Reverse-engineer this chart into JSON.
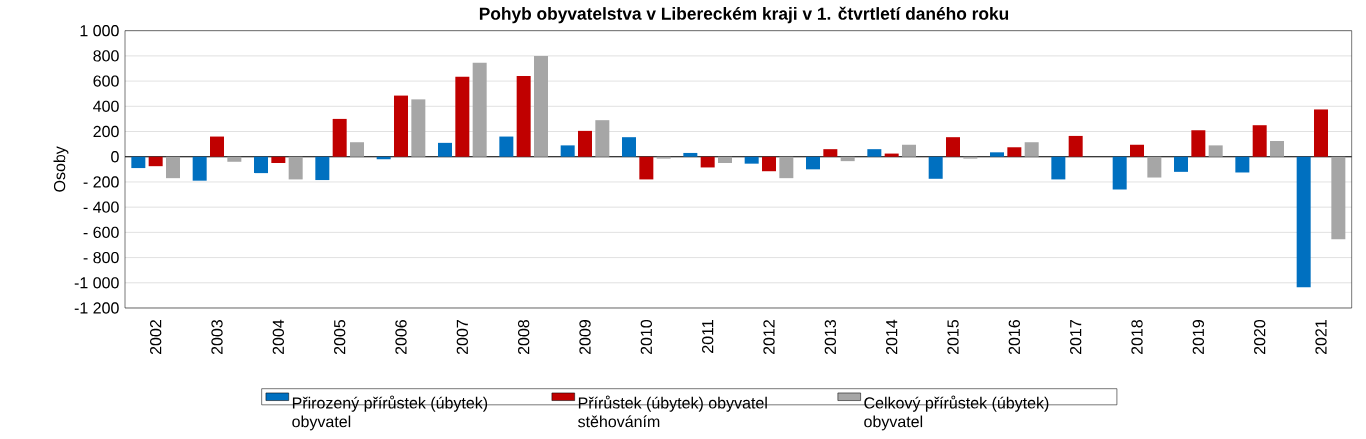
{
  "chart_data": {
    "type": "bar",
    "title": "Pohyb obyvatelstva v Libereckém kraji v 1. čtvrtletí daného roku",
    "ylabel": "Osoby",
    "categories": [
      "2002",
      "2003",
      "2004",
      "2005",
      "2006",
      "2007",
      "2008",
      "2009",
      "2010",
      "2011",
      "2012",
      "2013",
      "2014",
      "2015",
      "2016",
      "2017",
      "2018",
      "2019",
      "2020",
      "2021"
    ],
    "series": [
      {
        "name": "Přirozený přírůstek (úbytek) obyvatel",
        "color": "#0070c0",
        "values": [
          -90,
          -190,
          -130,
          -185,
          -20,
          110,
          160,
          90,
          155,
          30,
          -55,
          -100,
          60,
          -175,
          35,
          -180,
          -260,
          -120,
          -125,
          -1035
        ]
      },
      {
        "name": "Přírůstek (úbytek) obyvatel stěhováním",
        "color": "#c00000",
        "values": [
          -75,
          160,
          -50,
          300,
          485,
          635,
          640,
          205,
          -180,
          -85,
          -115,
          60,
          25,
          155,
          75,
          165,
          95,
          210,
          250,
          375
        ]
      },
      {
        "name": "Celkový přírůstek (úbytek) obyvatel",
        "color": "#a6a6a6",
        "values": [
          -170,
          -40,
          -180,
          115,
          455,
          745,
          800,
          290,
          -15,
          -50,
          -170,
          -35,
          95,
          -15,
          115,
          0,
          -165,
          90,
          125,
          -655
        ]
      }
    ],
    "ylim": [
      -1200,
      1000
    ],
    "yticks": [
      {
        "value": -1200,
        "label": "-1 200"
      },
      {
        "value": -1000,
        "label": "-1 000"
      },
      {
        "value": -800,
        "label": "- 800"
      },
      {
        "value": -600,
        "label": "- 600"
      },
      {
        "value": -400,
        "label": "- 400"
      },
      {
        "value": -200,
        "label": "- 200"
      },
      0,
      200,
      400,
      600,
      800,
      {
        "value": 1000,
        "label": "1 000"
      }
    ],
    "grid": "y",
    "legend": "bottom"
  }
}
